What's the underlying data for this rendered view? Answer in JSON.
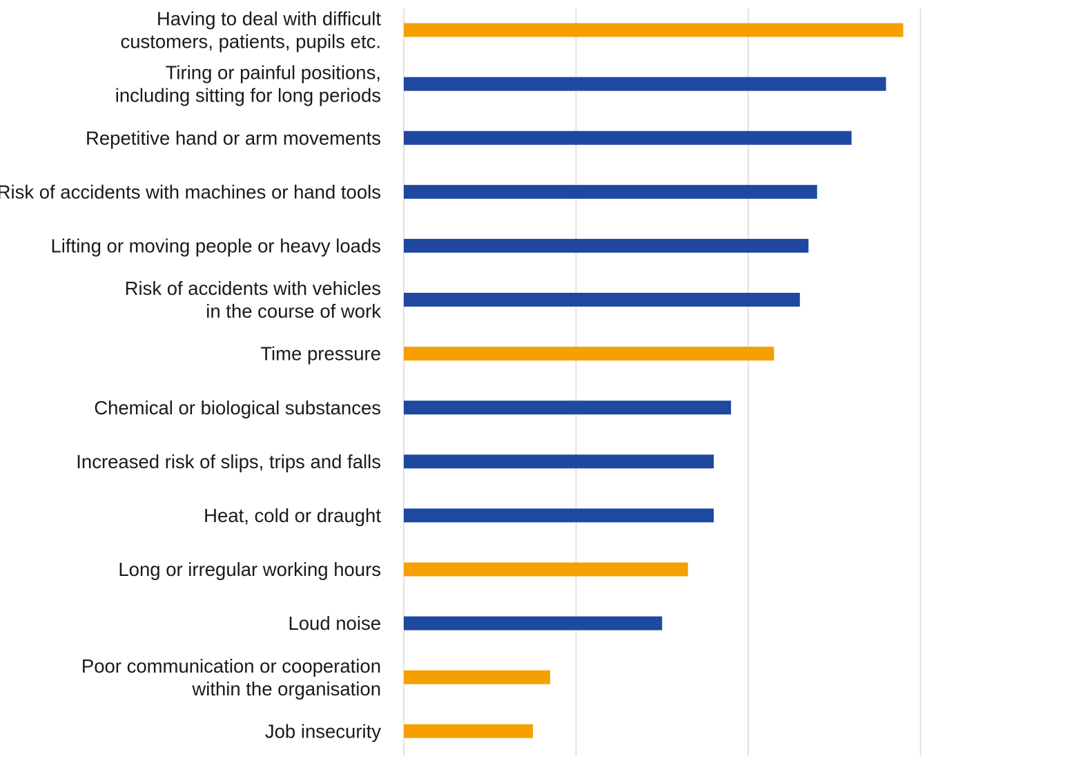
{
  "chart_data": {
    "type": "bar",
    "orientation": "horizontal",
    "title": "",
    "xlabel": "",
    "ylabel": "",
    "categories": [
      [
        "Having to deal with difficult",
        "customers, patients, pupils etc."
      ],
      [
        "Tiring or painful positions,",
        "including sitting for long periods"
      ],
      [
        "Repetitive hand or arm movements"
      ],
      [
        "Risk of accidents with machines or hand tools"
      ],
      [
        "Lifting or moving people or heavy loads"
      ],
      [
        "Risk of accidents with vehicles",
        "in the course of work"
      ],
      [
        "Time pressure"
      ],
      [
        "Chemical or biological substances"
      ],
      [
        "Increased risk of slips, trips and falls"
      ],
      [
        "Heat, cold or draught"
      ],
      [
        "Long or irregular working hours"
      ],
      [
        "Loud noise"
      ],
      [
        "Poor communication or cooperation",
        "within the organisation"
      ],
      [
        "Job insecurity"
      ]
    ],
    "values": [
      58,
      56,
      52,
      48,
      47,
      46,
      43,
      38,
      36,
      36,
      33,
      30,
      17,
      15
    ],
    "groups": [
      "psychosocial",
      "physical",
      "physical",
      "physical",
      "physical",
      "physical",
      "psychosocial",
      "physical",
      "physical",
      "physical",
      "psychosocial",
      "physical",
      "psychosocial",
      "psychosocial"
    ],
    "group_colors": {
      "psychosocial": "#F5A000",
      "physical": "#1F48A0"
    },
    "xlim": [
      0,
      70
    ],
    "gridlines": [
      0,
      20,
      40,
      60
    ],
    "grid": true,
    "tick_labels_shown": false,
    "legend": false
  }
}
